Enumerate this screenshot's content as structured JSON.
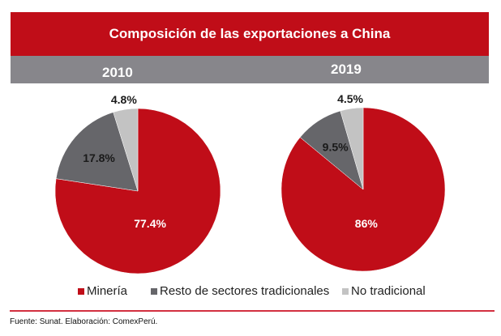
{
  "chart_data": {
    "type": "pie",
    "title": "Composición de las exportaciones a China",
    "legend": [
      "Minería",
      "Resto de sectores tradicionales",
      "No tradicional"
    ],
    "legend_position": "bottom",
    "colors": {
      "Minería": "#c00d18",
      "Resto de sectores tradicionales": "#66666a",
      "No tradicional": "#c3c3c3"
    },
    "pies": [
      {
        "label": "2010",
        "slices": [
          {
            "name": "Minería",
            "value": 77.4,
            "label": "77.4%"
          },
          {
            "name": "Resto de sectores tradicionales",
            "value": 17.8,
            "label": "17.8%"
          },
          {
            "name": "No tradicional",
            "value": 4.8,
            "label": "4.8%"
          }
        ]
      },
      {
        "label": "2019",
        "slices": [
          {
            "name": "Minería",
            "value": 86,
            "label": "86%"
          },
          {
            "name": "Resto de sectores tradicionales",
            "value": 9.5,
            "label": "9.5%"
          },
          {
            "name": "No tradicional",
            "value": 4.5,
            "label": "4.5%"
          }
        ]
      }
    ]
  },
  "footnote": "Fuente: Sunat. Elaboración: ComexPerú."
}
